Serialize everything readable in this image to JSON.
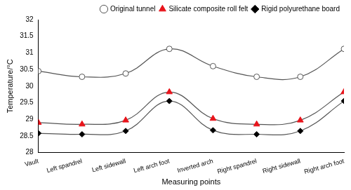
{
  "chart_data": {
    "type": "line",
    "x_label": "Measuring points",
    "y_label": "Temperature/°C",
    "categories": [
      "Vault",
      "Left spandrel",
      "Left sidewall",
      "Left arch foot",
      "Inverted arch",
      "Right spandrel",
      "Right sidewall",
      "Right arch foot"
    ],
    "series": [
      {
        "name": "Original tunnel",
        "color": "#ffffff",
        "marker": "circle",
        "values": [
          30.45,
          30.28,
          30.38,
          31.12,
          30.6,
          30.28,
          30.28,
          31.12
        ]
      },
      {
        "name": "Silicate composite roll felt",
        "color": "#e8141b",
        "marker": "triangle",
        "values": [
          28.9,
          28.85,
          28.97,
          29.82,
          29.02,
          28.85,
          28.97,
          29.82
        ]
      },
      {
        "name": "Rigid polyurethane board",
        "color": "#000000",
        "marker": "diamond",
        "values": [
          28.58,
          28.55,
          28.65,
          29.55,
          28.67,
          28.55,
          28.65,
          29.55
        ]
      }
    ],
    "ylim": [
      28,
      32
    ],
    "yticks": [
      28,
      28.5,
      29,
      29.5,
      30,
      30.5,
      31,
      31.5,
      32
    ],
    "grid": false,
    "legend": "upper right"
  }
}
